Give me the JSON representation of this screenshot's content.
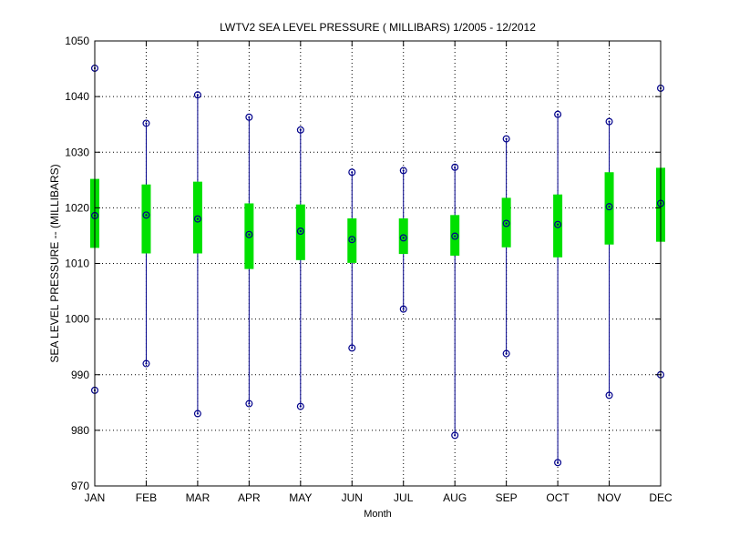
{
  "chart_data": {
    "type": "boxplot",
    "title": "LWTV2  SEA LEVEL PRESSURE ( MILLIBARS) 1/2005 - 12/2012",
    "xlabel": "Month",
    "ylabel": "SEA LEVEL PRESSURE -- (MILLIBARS)",
    "ylim": [
      970,
      1050
    ],
    "yticks": [
      970,
      980,
      990,
      1000,
      1010,
      1020,
      1030,
      1040,
      1050
    ],
    "grid": true,
    "categories": [
      "JAN",
      "FEB",
      "MAR",
      "APR",
      "MAY",
      "JUN",
      "JUL",
      "AUG",
      "SEP",
      "OCT",
      "NOV",
      "DEC"
    ],
    "series": [
      {
        "max": [
          1045.1,
          1035.2,
          1040.3,
          1036.3,
          1034.0,
          1026.4,
          1026.7,
          1027.3,
          1032.4,
          1036.8,
          1035.5,
          1041.5
        ],
        "upper": [
          1025.2,
          1024.2,
          1024.7,
          1020.8,
          1020.6,
          1018.1,
          1018.1,
          1018.7,
          1021.8,
          1022.4,
          1026.4,
          1027.2
        ],
        "median": [
          1018.6,
          1018.7,
          1018.0,
          1015.2,
          1015.8,
          1014.3,
          1014.6,
          1014.9,
          1017.2,
          1017.0,
          1020.2,
          1020.8
        ],
        "lower": [
          1012.8,
          1011.8,
          1011.8,
          1009.0,
          1010.6,
          1010.1,
          1011.7,
          1011.4,
          1012.9,
          1011.1,
          1013.4,
          1013.9
        ],
        "min": [
          987.2,
          992.0,
          983.0,
          984.8,
          984.3,
          994.8,
          1001.8,
          979.1,
          993.8,
          974.2,
          986.3,
          990.0
        ]
      }
    ],
    "colors": {
      "box": "#00e000",
      "whisker": "#00008b",
      "marker": "#00008b",
      "grid": "#000000"
    }
  }
}
